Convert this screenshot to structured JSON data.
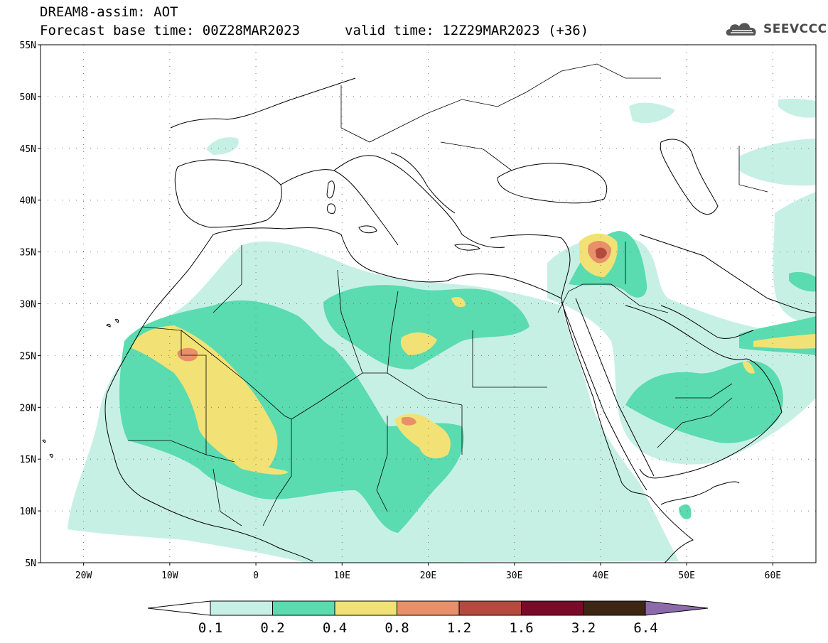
{
  "header": {
    "title": "DREAM8-assim: AOT",
    "base_time": "Forecast base time: 00Z28MAR2023",
    "valid_time": "valid time: 12Z29MAR2023 (+36)",
    "logo_text": "SEEVCCC"
  },
  "map": {
    "lon_range": [
      -25,
      65
    ],
    "lat_range": [
      5,
      55
    ],
    "lat_labels": [
      "55N",
      "50N",
      "45N",
      "40N",
      "35N",
      "30N",
      "25N",
      "20N",
      "15N",
      "10N",
      "5N"
    ],
    "lon_labels": [
      "20W",
      "10W",
      "0",
      "10E",
      "20E",
      "30E",
      "40E",
      "50E",
      "60E"
    ],
    "grid": "dotted"
  },
  "legend": {
    "levels": [
      "0.1",
      "0.2",
      "0.4",
      "0.8",
      "1.2",
      "1.6",
      "3.2",
      "6.4"
    ],
    "colors": [
      "#ffffff",
      "#c7f0e5",
      "#5adbb0",
      "#f2e275",
      "#e8906a",
      "#b5493c",
      "#7a0a2a",
      "#3e2614",
      "#8c6bab"
    ]
  },
  "colors": {
    "aot_0_1": "#c7f0e5",
    "aot_0_2": "#5adbb0",
    "aot_0_4": "#f2e275",
    "aot_0_8": "#e8906a",
    "aot_1_2": "#b5493c"
  }
}
